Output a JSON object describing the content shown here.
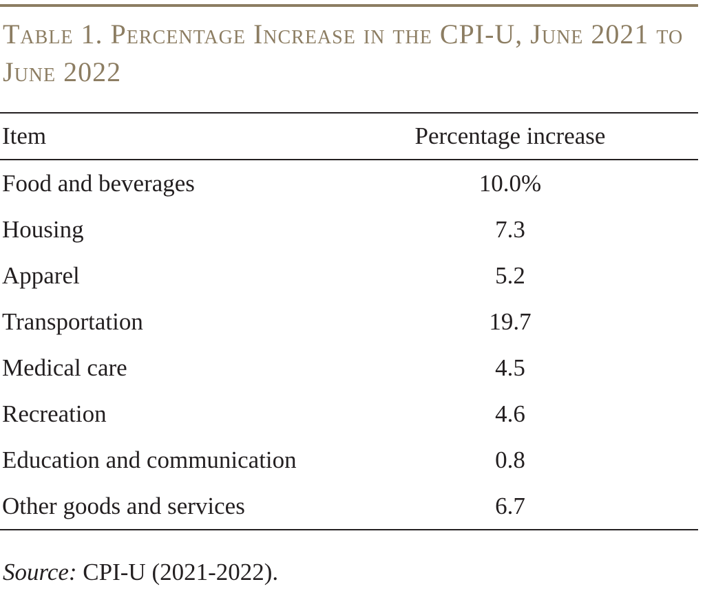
{
  "title": "Table 1. Percentage Increase in the CPI-U, June 2021 to June 2022",
  "columns": [
    "Item",
    "Percentage increase"
  ],
  "rows": [
    {
      "item": "Food and beverages",
      "value": "10.0%"
    },
    {
      "item": "Housing",
      "value": "7.3"
    },
    {
      "item": "Apparel",
      "value": "5.2"
    },
    {
      "item": "Transportation",
      "value": "19.7"
    },
    {
      "item": "Medical care",
      "value": "4.5"
    },
    {
      "item": "Recreation",
      "value": "4.6"
    },
    {
      "item": "Education and communication",
      "value": "0.8"
    },
    {
      "item": "Other goods and services",
      "value": "6.7"
    }
  ],
  "source": {
    "label": "Source:",
    "text": " CPI-U (2021-2022)."
  },
  "colors": {
    "title": "#8c7d62",
    "rule": "#8c7d62",
    "text": "#231f20"
  }
}
